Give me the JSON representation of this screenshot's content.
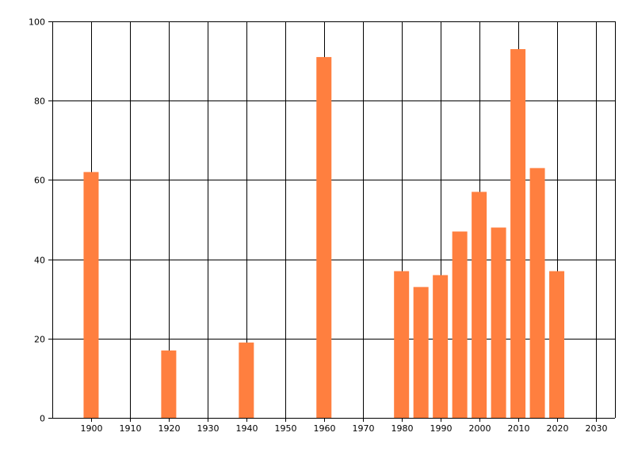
{
  "chart_data": {
    "type": "bar",
    "title": "",
    "xlabel": "",
    "ylabel": "",
    "x": [
      1900,
      1920,
      1940,
      1960,
      1980,
      1985,
      1990,
      1995,
      2000,
      2005,
      2010,
      2015,
      2020
    ],
    "values": [
      62,
      17,
      19,
      91,
      37,
      33,
      36,
      47,
      57,
      48,
      93,
      63,
      37
    ],
    "xlim": [
      1890,
      2035
    ],
    "ylim": [
      0,
      100
    ],
    "x_ticks": [
      1900,
      1910,
      1920,
      1930,
      1940,
      1950,
      1960,
      1970,
      1980,
      1990,
      2000,
      2010,
      2020,
      2030
    ],
    "y_ticks": [
      0,
      20,
      40,
      60,
      80,
      100
    ],
    "grid": true,
    "legend": "none",
    "bar_color": "#ff7f3f",
    "grid_color": "#000000",
    "axis_color": "#000000"
  }
}
